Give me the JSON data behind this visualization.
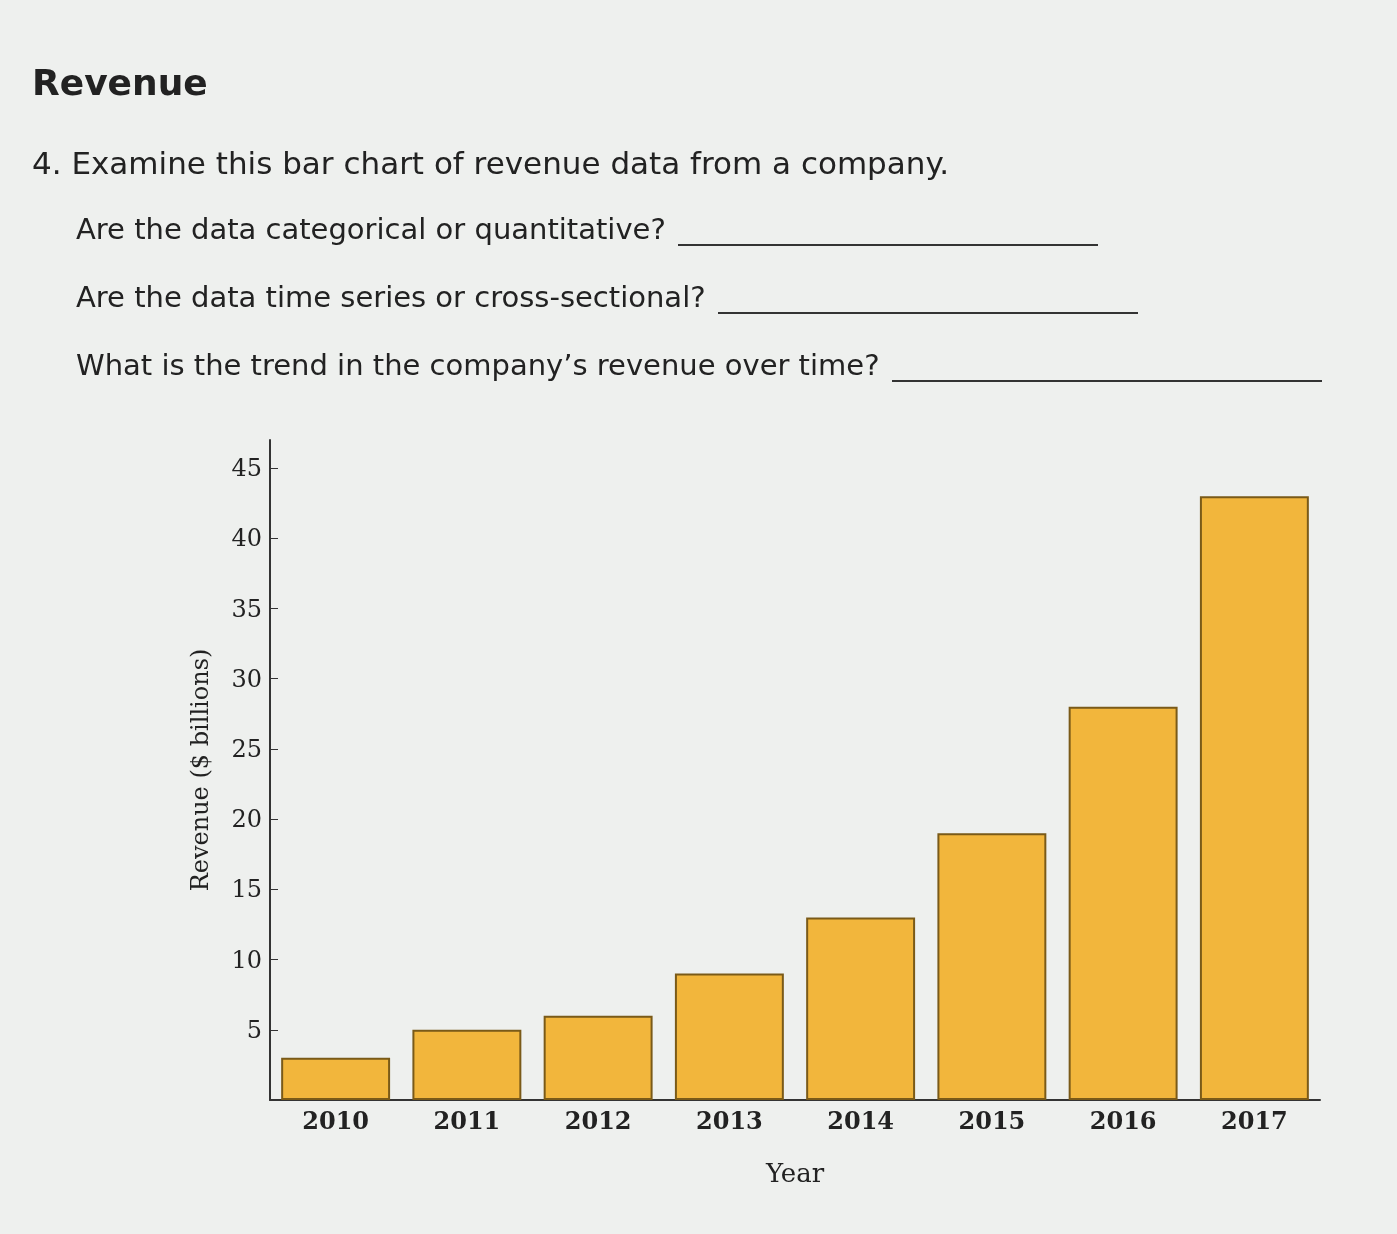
{
  "chart_data": {
    "type": "bar",
    "title": "Revenue",
    "subtitle": "4. Examine this bar chart of revenue data from a company.",
    "annotations": [
      "Are the data categorical or quantitative?",
      "Are the data time series or cross-sectional?",
      "What is the trend in the company’s revenue over time?"
    ],
    "xlabel": "Year",
    "ylabel": "Revenue ($ billions)",
    "categories": [
      "2010",
      "2011",
      "2012",
      "2013",
      "2014",
      "2015",
      "2016",
      "2017"
    ],
    "values": [
      3,
      5,
      6,
      9,
      13,
      19,
      28,
      43
    ],
    "color": "#f2b63c",
    "ylim": [
      0,
      47
    ],
    "yticks": [
      5,
      10,
      15,
      20,
      25,
      30,
      35,
      40,
      45
    ],
    "grid": false
  }
}
